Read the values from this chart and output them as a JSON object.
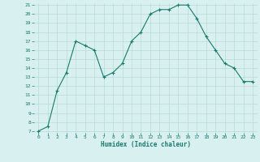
{
  "x": [
    0,
    1,
    2,
    3,
    4,
    5,
    6,
    7,
    8,
    9,
    10,
    11,
    12,
    13,
    14,
    15,
    16,
    17,
    18,
    19,
    20,
    21,
    22,
    23
  ],
  "y": [
    7.0,
    7.5,
    11.5,
    13.5,
    17.0,
    16.5,
    16.0,
    13.0,
    13.5,
    14.5,
    17.0,
    18.0,
    20.0,
    20.5,
    20.5,
    21.0,
    21.0,
    19.5,
    17.5,
    16.0,
    14.5,
    14.0,
    12.5,
    12.5
  ],
  "xlabel": "Humidex (Indice chaleur)",
  "line_color": "#1a7a6e",
  "marker_color": "#1a7a6e",
  "bg_color": "#d8f0ef",
  "grid_color": "#b8dbd8",
  "tick_label_color": "#1a7a6e",
  "xlabel_color": "#1a7a6e",
  "ylim_min": 7,
  "ylim_max": 21,
  "xlim_min": -0.5,
  "xlim_max": 23.5,
  "yticks": [
    7,
    8,
    9,
    10,
    11,
    12,
    13,
    14,
    15,
    16,
    17,
    18,
    19,
    20,
    21
  ],
  "xticks": [
    0,
    1,
    2,
    3,
    4,
    5,
    6,
    7,
    8,
    9,
    10,
    11,
    12,
    13,
    14,
    15,
    16,
    17,
    18,
    19,
    20,
    21,
    22,
    23
  ]
}
